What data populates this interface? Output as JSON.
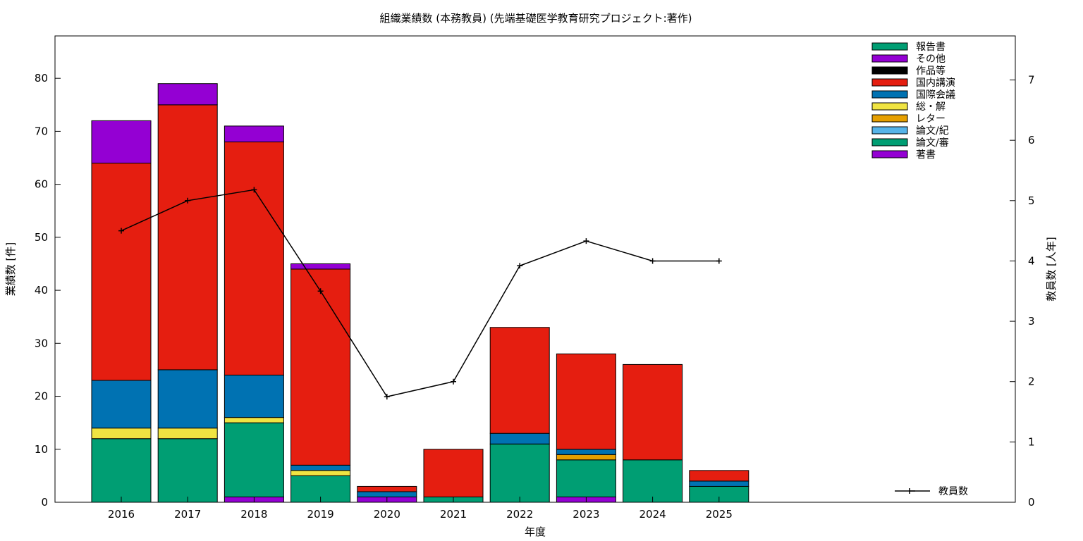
{
  "chart_data": {
    "type": "bar",
    "stacked": true,
    "title": "組織業績数 (本務教員) (先端基礎医学教育研究プロジェクト:著作)",
    "xlabel": "年度",
    "ylabel": "業績数 [件]",
    "y2label": "教員数 [人年]",
    "ylim": [
      0,
      88
    ],
    "y2lim": [
      0,
      7.73
    ],
    "yticks": [
      0,
      10,
      20,
      30,
      40,
      50,
      60,
      70,
      80
    ],
    "y2ticks": [
      0,
      1,
      2,
      3,
      4,
      5,
      6,
      7
    ],
    "categories": [
      "2016",
      "2017",
      "2018",
      "2019",
      "2020",
      "2021",
      "2022",
      "2023",
      "2024",
      "2025"
    ],
    "series": [
      {
        "name": "著書",
        "color": "#9400d3",
        "values": [
          0,
          0,
          1,
          0,
          1,
          0,
          0,
          1,
          0,
          0
        ]
      },
      {
        "name": "論文/審",
        "color": "#009e73",
        "values": [
          12,
          12,
          14,
          5,
          0,
          1,
          11,
          7,
          8,
          3
        ]
      },
      {
        "name": "論文/紀",
        "color": "#56b4e9",
        "values": [
          0,
          0,
          0,
          0,
          0,
          0,
          0,
          0,
          0,
          0
        ]
      },
      {
        "name": "レター",
        "color": "#e69f00",
        "values": [
          0,
          0,
          0,
          0,
          0,
          0,
          0,
          1,
          0,
          0
        ]
      },
      {
        "name": "総・解",
        "color": "#f0e442",
        "values": [
          2,
          2,
          1,
          1,
          0,
          0,
          0,
          0,
          0,
          0
        ]
      },
      {
        "name": "国際会議",
        "color": "#0072b2",
        "values": [
          9,
          11,
          8,
          1,
          1,
          0,
          2,
          1,
          0,
          1
        ]
      },
      {
        "name": "国内講演",
        "color": "#e51e10",
        "values": [
          41,
          50,
          44,
          37,
          1,
          9,
          20,
          18,
          18,
          2
        ]
      },
      {
        "name": "作品等",
        "color": "#000000",
        "values": [
          0,
          0,
          0,
          0,
          0,
          0,
          0,
          0,
          0,
          0
        ]
      },
      {
        "name": "その他",
        "color": "#9400d3",
        "values": [
          8,
          4,
          3,
          1,
          0,
          0,
          0,
          0,
          0,
          0
        ]
      },
      {
        "name": "報告書",
        "color": "#009e73",
        "values": [
          0,
          0,
          0,
          0,
          0,
          0,
          0,
          0,
          0,
          0
        ]
      }
    ],
    "line": {
      "name": "教員数",
      "axis": "y2",
      "color": "#000000",
      "values": [
        4.5,
        5.0,
        5.18,
        3.5,
        1.75,
        2.0,
        3.92,
        4.33,
        4.0,
        4.0
      ]
    },
    "legend_order": [
      "報告書",
      "その他",
      "作品等",
      "国内講演",
      "国際会議",
      "総・解",
      "レター",
      "論文/紀",
      "論文/審",
      "著書"
    ],
    "legend_position": "top-right",
    "line_legend_position": "bottom-right",
    "grid": false
  }
}
